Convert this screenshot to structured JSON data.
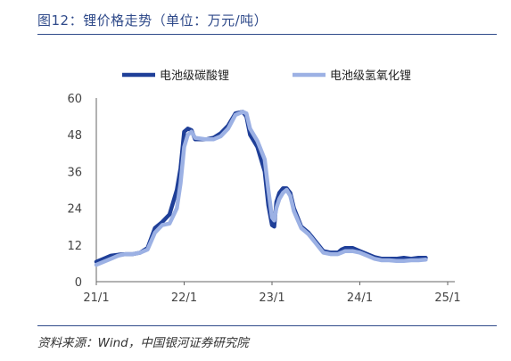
{
  "header": {
    "title": "图12：锂价格走势（单位：万元/吨）"
  },
  "footer": {
    "source": "资料来源：Wind，中国银河证券研究院"
  },
  "colors": {
    "accent": "#2f4a8a",
    "carbonate": "#1f3f98",
    "hydroxide": "#9cb1e4"
  },
  "chart_data": {
    "type": "line",
    "title": "",
    "xlabel": "",
    "ylabel": "",
    "x_ticks": [
      "21/1",
      "22/1",
      "23/1",
      "24/1",
      "25/1"
    ],
    "y_ticks": [
      "0",
      "12",
      "24",
      "36",
      "48",
      "60"
    ],
    "ylim": [
      0,
      60
    ],
    "xlim": [
      0,
      48
    ],
    "legend_position": "top",
    "grid": false,
    "series": [
      {
        "name": "电池级碳酸锂",
        "color": "#1f3f98",
        "points": [
          [
            0,
            6.5
          ],
          [
            1,
            7.5
          ],
          [
            2,
            8.5
          ],
          [
            3,
            8.8
          ],
          [
            4,
            9
          ],
          [
            5,
            9
          ],
          [
            6,
            9.5
          ],
          [
            7,
            11
          ],
          [
            8,
            17.5
          ],
          [
            9,
            19.5
          ],
          [
            10,
            22
          ],
          [
            11,
            30
          ],
          [
            11.5,
            37
          ],
          [
            12,
            49
          ],
          [
            12.5,
            50
          ],
          [
            13,
            49.5
          ],
          [
            13.5,
            46.5
          ],
          [
            15,
            46.5
          ],
          [
            16,
            47
          ],
          [
            17,
            48.5
          ],
          [
            18,
            51
          ],
          [
            19,
            55
          ],
          [
            20,
            55.5
          ],
          [
            20.5,
            54
          ],
          [
            21,
            48
          ],
          [
            22,
            44
          ],
          [
            23,
            36
          ],
          [
            23.5,
            25
          ],
          [
            24,
            18.5
          ],
          [
            24.3,
            18
          ],
          [
            24.6,
            26
          ],
          [
            25,
            29
          ],
          [
            25.5,
            30.5
          ],
          [
            26,
            30.5
          ],
          [
            26.5,
            29
          ],
          [
            27,
            24
          ],
          [
            28,
            18
          ],
          [
            29,
            16
          ],
          [
            30,
            13
          ],
          [
            31,
            10
          ],
          [
            32,
            9.5
          ],
          [
            33,
            9.5
          ],
          [
            33.5,
            10.5
          ],
          [
            34,
            11
          ],
          [
            35,
            11
          ],
          [
            36,
            10
          ],
          [
            37,
            9
          ],
          [
            38,
            8
          ],
          [
            39,
            7.5
          ],
          [
            40,
            7.5
          ],
          [
            41,
            7.5
          ],
          [
            42,
            7.8
          ],
          [
            43,
            7.5
          ],
          [
            44,
            7.8
          ],
          [
            45,
            7.8
          ]
        ]
      },
      {
        "name": "电池级氢氧化锂",
        "color": "#9cb1e4",
        "points": [
          [
            0,
            5.5
          ],
          [
            1,
            6.5
          ],
          [
            2,
            7.5
          ],
          [
            3,
            8.5
          ],
          [
            4,
            9
          ],
          [
            5,
            9
          ],
          [
            6,
            9.5
          ],
          [
            7,
            10.5
          ],
          [
            8,
            16
          ],
          [
            9,
            18.5
          ],
          [
            10,
            19
          ],
          [
            11,
            24
          ],
          [
            11.5,
            32
          ],
          [
            12,
            44
          ],
          [
            12.5,
            48
          ],
          [
            13,
            49
          ],
          [
            13.5,
            47
          ],
          [
            15,
            46.5
          ],
          [
            16,
            46.5
          ],
          [
            17,
            47.5
          ],
          [
            18,
            50
          ],
          [
            19,
            54.5
          ],
          [
            20,
            55.5
          ],
          [
            20.5,
            55
          ],
          [
            21,
            50
          ],
          [
            22,
            46
          ],
          [
            23,
            40
          ],
          [
            23.5,
            30
          ],
          [
            24,
            21
          ],
          [
            24.3,
            20
          ],
          [
            24.6,
            24
          ],
          [
            25,
            27
          ],
          [
            25.5,
            29
          ],
          [
            26,
            30
          ],
          [
            26.5,
            28
          ],
          [
            27,
            23
          ],
          [
            28,
            17.5
          ],
          [
            29,
            15.5
          ],
          [
            30,
            12.5
          ],
          [
            31,
            9.5
          ],
          [
            32,
            9
          ],
          [
            33,
            9
          ],
          [
            33.5,
            9.5
          ],
          [
            34,
            10
          ],
          [
            35,
            10
          ],
          [
            36,
            9.5
          ],
          [
            37,
            8.5
          ],
          [
            38,
            7.5
          ],
          [
            39,
            7
          ],
          [
            40,
            7
          ],
          [
            41,
            6.8
          ],
          [
            42,
            6.8
          ],
          [
            43,
            7
          ],
          [
            44,
            7
          ],
          [
            45,
            7.2
          ]
        ]
      }
    ]
  }
}
